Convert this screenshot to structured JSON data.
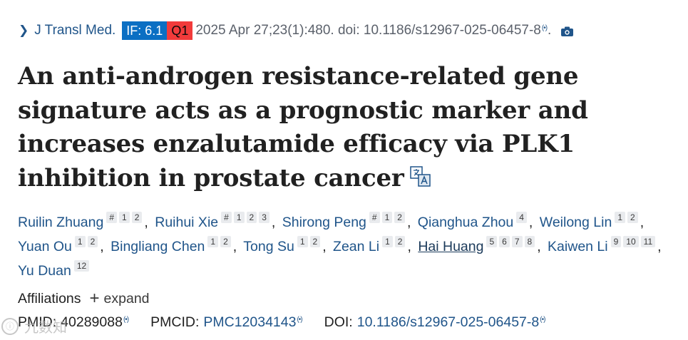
{
  "citation": {
    "journal": "J Transl Med.",
    "impact_factor": "IF: 6.1",
    "quartile": "Q1",
    "details": "2025 Apr 27;23(1):480. doi: 10.1186/s12967-025-06457-8",
    "signal_glyph": "(•)",
    "end_punct": ".",
    "camera_icon": "camera-icon"
  },
  "title": "An anti-androgen resistance-related gene signature acts as a prognostic marker and increases enzalutamide efficacy via PLK1 inhibition in prostate cancer",
  "translate_icon": "translate-icon",
  "authors": [
    {
      "name": "Ruilin Zhuang",
      "sups": [
        "#",
        "1",
        "2"
      ]
    },
    {
      "name": "Ruihui Xie",
      "sups": [
        "#",
        "1",
        "2",
        "3"
      ]
    },
    {
      "name": "Shirong Peng",
      "sups": [
        "#",
        "1",
        "2"
      ]
    },
    {
      "name": "Qianghua Zhou",
      "sups": [
        "4"
      ]
    },
    {
      "name": "Weilong Lin",
      "sups": [
        "1",
        "2"
      ]
    },
    {
      "name": "Yuan Ou",
      "sups": [
        "1",
        "2"
      ]
    },
    {
      "name": "Bingliang Chen",
      "sups": [
        "1",
        "2"
      ]
    },
    {
      "name": "Tong Su",
      "sups": [
        "1",
        "2"
      ]
    },
    {
      "name": "Zean Li",
      "sups": [
        "1",
        "2"
      ]
    },
    {
      "name": "Hai Huang",
      "sups": [
        "5",
        "6",
        "7",
        "8"
      ],
      "underlined": true
    },
    {
      "name": "Kaiwen Li",
      "sups": [
        "9",
        "10",
        "11"
      ]
    },
    {
      "name": "Yu Duan",
      "sups": [
        "12"
      ]
    }
  ],
  "author_separator": ",",
  "affiliations": {
    "label": "Affiliations",
    "plus": "+",
    "expand": "expand"
  },
  "identifiers": {
    "pmid_label": "PMID:",
    "pmid": "40289088",
    "pmcid_label": "PMCID:",
    "pmcid": "PMC12034143",
    "doi_label": "DOI:",
    "doi": "10.1186/s12967-025-06457-8"
  },
  "watermark": {
    "icon_glyph": "ⓘ",
    "text": "九数知"
  },
  "colors": {
    "link": "#20558a",
    "if_badge": "#0b6fc3",
    "q_badge": "#f23b3b"
  }
}
